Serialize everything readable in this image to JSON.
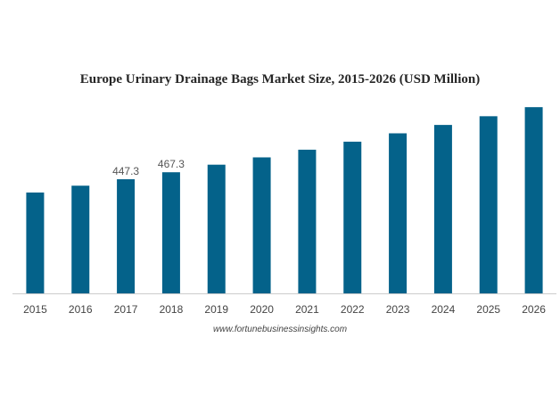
{
  "chart_data": {
    "type": "bar",
    "title": "Europe Urinary Drainage Bags Market Size, 2015-2026 (USD Million)",
    "xlabel": "",
    "ylabel": "",
    "categories": [
      "2015",
      "2016",
      "2017",
      "2018",
      "2019",
      "2020",
      "2021",
      "2022",
      "2023",
      "2024",
      "2025",
      "2026"
    ],
    "values": [
      409.3,
      428.8,
      447.3,
      467.3,
      489.0,
      510.0,
      532.0,
      555.0,
      579.0,
      603.0,
      628.0,
      654.0
    ],
    "data_labels": [
      "",
      "",
      "447.3",
      "467.3",
      "",
      "",
      "",
      "",
      "",
      "",
      "",
      ""
    ],
    "ylim": [
      120,
      680
    ],
    "grid": false,
    "bar_color": "#04628a",
    "axis_color": "#cccccc"
  },
  "source": "www.fortunebusinessinsights.com"
}
